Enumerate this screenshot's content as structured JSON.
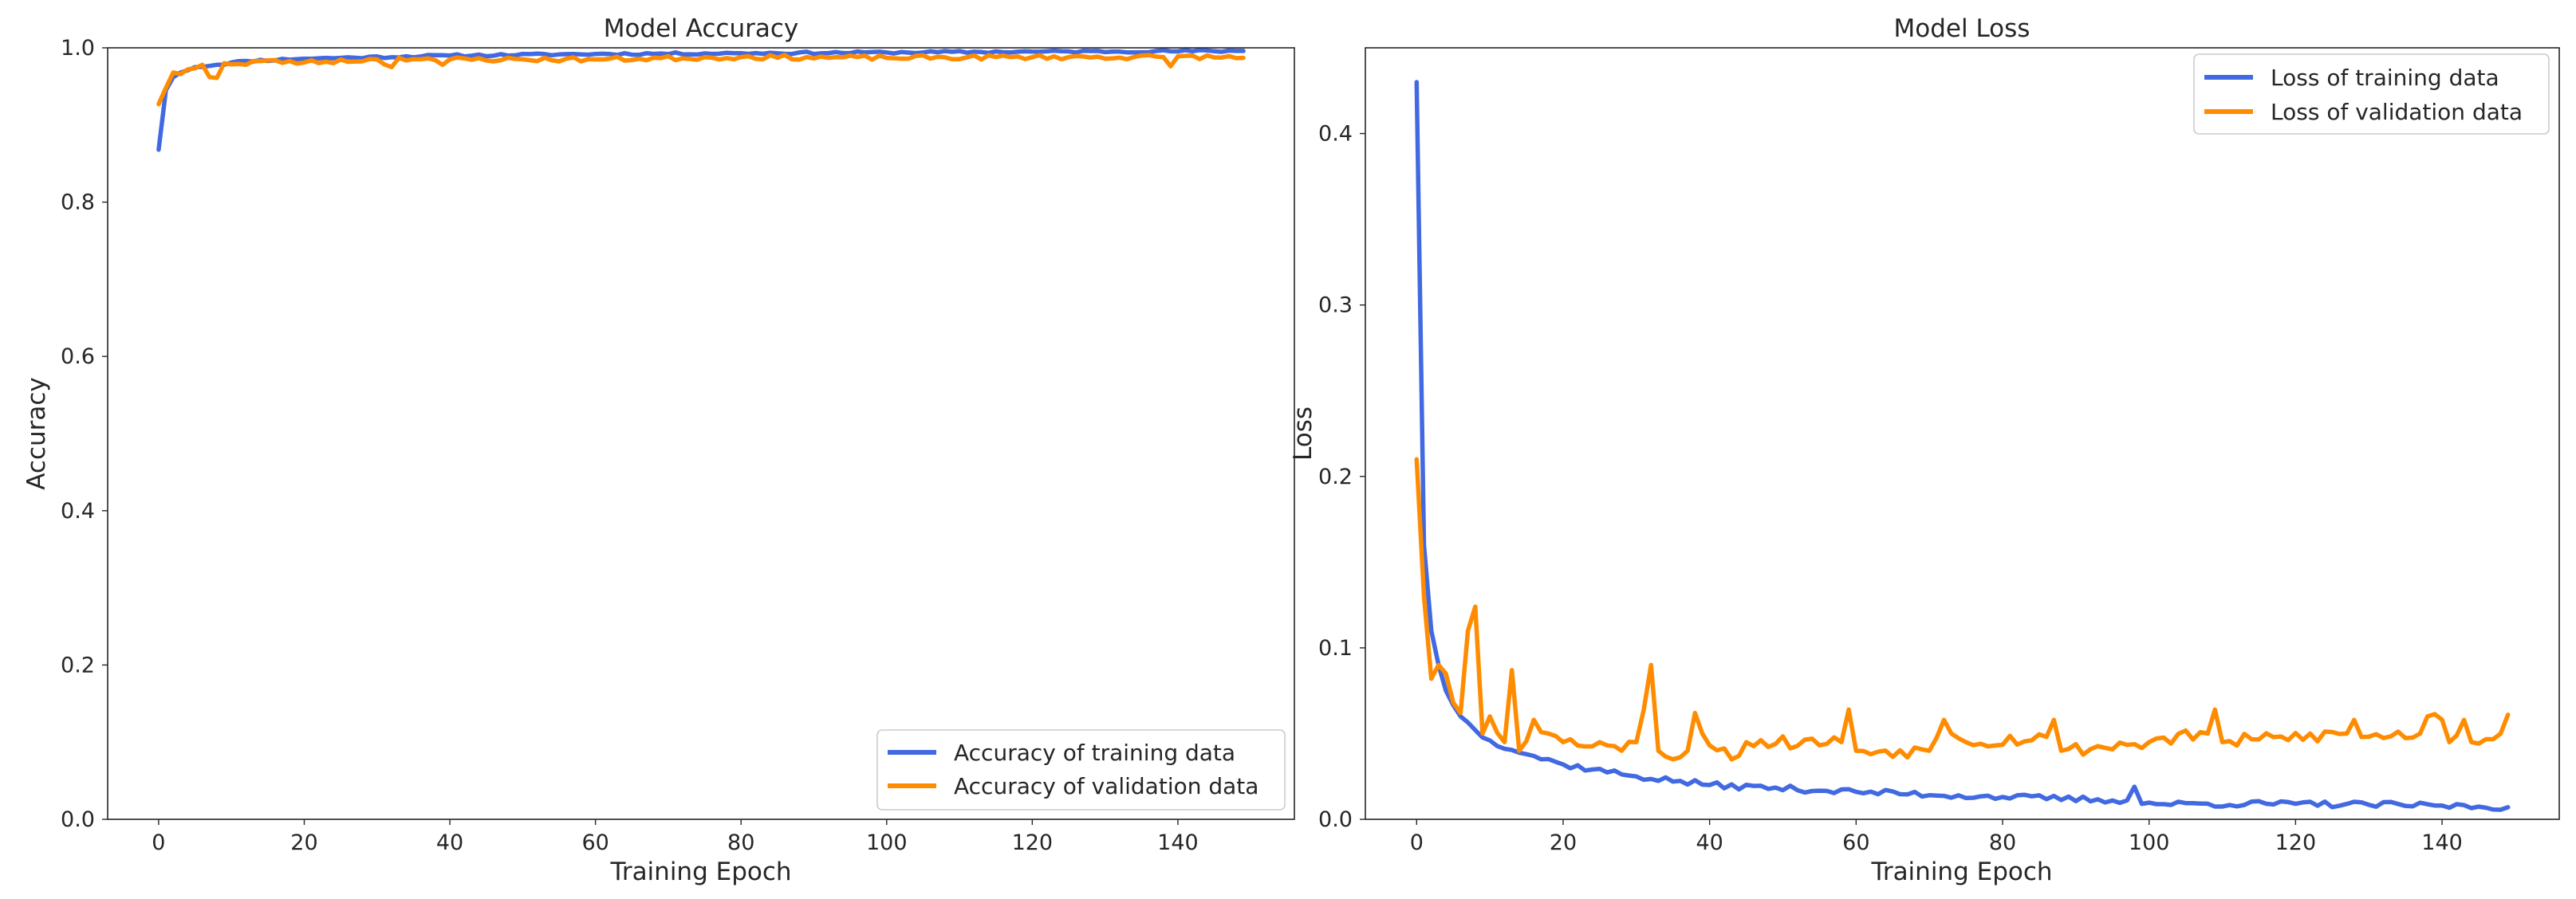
{
  "colors": {
    "training": "#4169e1",
    "validation": "#ff8c00"
  },
  "chart_data": [
    {
      "type": "line",
      "id": "accuracy",
      "title": "Model Accuracy",
      "xlabel": "Training Epoch",
      "ylabel": "Accuracy",
      "xlim": [
        -7,
        156
      ],
      "ylim": [
        0.0,
        1.0
      ],
      "xticks": [
        0,
        20,
        40,
        60,
        80,
        100,
        120,
        140
      ],
      "yticks": [
        0.0,
        0.2,
        0.4,
        0.6,
        0.8,
        1.0
      ],
      "ytick_labels": [
        "0.0",
        "0.2",
        "0.4",
        "0.6",
        "0.8",
        "1.0"
      ],
      "legend_position": "lower-right",
      "series": [
        {
          "name": "Accuracy of training data",
          "color_key": "training",
          "anchors": [
            [
              0,
              0.868
            ],
            [
              1,
              0.945
            ],
            [
              2,
              0.962
            ],
            [
              3,
              0.968
            ],
            [
              5,
              0.975
            ],
            [
              8,
              0.978
            ],
            [
              12,
              0.983
            ],
            [
              20,
              0.986
            ],
            [
              40,
              0.99
            ],
            [
              60,
              0.992
            ],
            [
              80,
              0.993
            ],
            [
              100,
              0.994
            ],
            [
              120,
              0.995
            ],
            [
              149,
              0.996
            ]
          ],
          "noise": 0.0015,
          "seed": 11
        },
        {
          "name": "Accuracy of validation data",
          "color_key": "validation",
          "anchors": [
            [
              0,
              0.927
            ],
            [
              1,
              0.948
            ],
            [
              2,
              0.968
            ],
            [
              3,
              0.966
            ],
            [
              4,
              0.972
            ],
            [
              6,
              0.978
            ],
            [
              7,
              0.962
            ],
            [
              8,
              0.961
            ],
            [
              9,
              0.98
            ],
            [
              12,
              0.978
            ],
            [
              13,
              0.983
            ],
            [
              20,
              0.981
            ],
            [
              30,
              0.985
            ],
            [
              32,
              0.975
            ],
            [
              33,
              0.987
            ],
            [
              38,
              0.984
            ],
            [
              39,
              0.978
            ],
            [
              40,
              0.985
            ],
            [
              60,
              0.985
            ],
            [
              80,
              0.988
            ],
            [
              100,
              0.987
            ],
            [
              120,
              0.988
            ],
            [
              138,
              0.988
            ],
            [
              139,
              0.976
            ],
            [
              140,
              0.989
            ],
            [
              149,
              0.987
            ]
          ],
          "noise": 0.003,
          "seed": 23
        }
      ]
    },
    {
      "type": "line",
      "id": "loss",
      "title": "Model Loss",
      "xlabel": "Training Epoch",
      "ylabel": "Loss",
      "xlim": [
        -7,
        156
      ],
      "ylim": [
        0.0,
        0.45
      ],
      "xticks": [
        0,
        20,
        40,
        60,
        80,
        100,
        120,
        140
      ],
      "yticks": [
        0.0,
        0.1,
        0.2,
        0.3,
        0.4
      ],
      "ytick_labels": [
        "0.0",
        "0.1",
        "0.2",
        "0.3",
        "0.4"
      ],
      "legend_position": "top-right",
      "series": [
        {
          "name": "Loss of training data",
          "color_key": "training",
          "anchors": [
            [
              0,
              0.43
            ],
            [
              1,
              0.16
            ],
            [
              2,
              0.11
            ],
            [
              3,
              0.09
            ],
            [
              4,
              0.075
            ],
            [
              6,
              0.06
            ],
            [
              8,
              0.052
            ],
            [
              10,
              0.046
            ],
            [
              15,
              0.038
            ],
            [
              20,
              0.032
            ],
            [
              30,
              0.025
            ],
            [
              40,
              0.02
            ],
            [
              60,
              0.016
            ],
            [
              80,
              0.013
            ],
            [
              97,
              0.011
            ],
            [
              98,
              0.019
            ],
            [
              99,
              0.009
            ],
            [
              120,
              0.009
            ],
            [
              140,
              0.008
            ],
            [
              149,
              0.007
            ]
          ],
          "noise": 0.0018,
          "seed": 37
        },
        {
          "name": "Loss of validation data",
          "color_key": "validation",
          "anchors": [
            [
              0,
              0.21
            ],
            [
              1,
              0.13
            ],
            [
              2,
              0.082
            ],
            [
              3,
              0.09
            ],
            [
              4,
              0.085
            ],
            [
              5,
              0.068
            ],
            [
              6,
              0.062
            ],
            [
              7,
              0.11
            ],
            [
              8,
              0.124
            ],
            [
              9,
              0.05
            ],
            [
              10,
              0.06
            ],
            [
              12,
              0.045
            ],
            [
              13,
              0.087
            ],
            [
              14,
              0.04
            ],
            [
              16,
              0.058
            ],
            [
              18,
              0.05
            ],
            [
              20,
              0.045
            ],
            [
              25,
              0.045
            ],
            [
              28,
              0.04
            ],
            [
              30,
              0.045
            ],
            [
              32,
              0.09
            ],
            [
              33,
              0.04
            ],
            [
              35,
              0.035
            ],
            [
              37,
              0.04
            ],
            [
              38,
              0.062
            ],
            [
              39,
              0.05
            ],
            [
              43,
              0.035
            ],
            [
              45,
              0.045
            ],
            [
              58,
              0.045
            ],
            [
              59,
              0.064
            ],
            [
              60,
              0.04
            ],
            [
              70,
              0.04
            ],
            [
              72,
              0.058
            ],
            [
              75,
              0.045
            ],
            [
              86,
              0.048
            ],
            [
              87,
              0.058
            ],
            [
              88,
              0.04
            ],
            [
              100,
              0.045
            ],
            [
              108,
              0.05
            ],
            [
              109,
              0.064
            ],
            [
              110,
              0.045
            ],
            [
              127,
              0.05
            ],
            [
              128,
              0.058
            ],
            [
              129,
              0.048
            ],
            [
              137,
              0.05
            ],
            [
              138,
              0.06
            ],
            [
              140,
              0.058
            ],
            [
              141,
              0.045
            ],
            [
              143,
              0.058
            ],
            [
              144,
              0.045
            ],
            [
              148,
              0.05
            ],
            [
              149,
              0.061
            ]
          ],
          "noise": 0.004,
          "seed": 53
        }
      ]
    }
  ]
}
